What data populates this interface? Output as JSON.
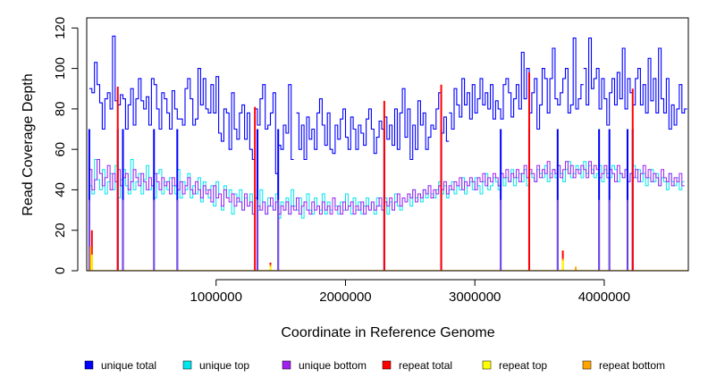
{
  "chart_data": {
    "type": "line",
    "title": "",
    "xlabel": "Coordinate in Reference Genome",
    "ylabel": "Read Coverage Depth",
    "xlim": [
      0,
      4650000
    ],
    "ylim": [
      0,
      125
    ],
    "x_ticks": [
      1000000,
      2000000,
      3000000,
      4000000
    ],
    "x_tick_labels": [
      "1000000",
      "2000000",
      "3000000",
      "4000000"
    ],
    "y_ticks": [
      0,
      20,
      40,
      60,
      80,
      100,
      120
    ],
    "y_tick_labels": [
      "0",
      "20",
      "40",
      "60",
      "80",
      "100",
      "120"
    ],
    "grid": false,
    "legend_position": "bottom",
    "x_start": 20000,
    "x_step": 20000,
    "series": [
      {
        "name": "unique total",
        "color": "#0000ff",
        "segments": [
          {
            "x_start": 20000,
            "x_step": 20000,
            "values": [
              90,
              88,
              103,
              92,
              83,
              70,
              85,
              88,
              80,
              116,
              84,
              82,
              87,
              85,
              70,
              82,
              90,
              72,
              85,
              95,
              84,
              80,
              86,
              72,
              95,
              92,
              80,
              70,
              88,
              85,
              78,
              70,
              89,
              80,
              75,
              75,
              72,
              90,
              95,
              85,
              72,
              75,
              100,
              82,
              95,
              80,
              78,
              92,
              78,
              96,
              68,
              64,
              80,
              78,
              60,
              88,
              70,
              65,
              78,
              82,
              65,
              78,
              60,
              55,
              80,
              72,
              85,
              92,
              70,
              72,
              78,
              88,
              48,
              62,
              60,
              72,
              68,
              92,
              55
            ]
          },
          {
            "x_start": 1620000,
            "x_step": 20000,
            "values": [
              78,
              60,
              72,
              55,
              76,
              65,
              70,
              60,
              78,
              85,
              72,
              62,
              78,
              60,
              58,
              72,
              65,
              75,
              80,
              66,
              60,
              76,
              70,
              60,
              72,
              68,
              62,
              75,
              80,
              70,
              58,
              66,
              74,
              70,
              76,
              65,
              72,
              62,
              80,
              60,
              78,
              90,
              66,
              80,
              55,
              72,
              60,
              84,
              72,
              78,
              60,
              66,
              72,
              70,
              80,
              88,
              68,
              76,
              64
            ]
          },
          {
            "x_start": 2800000,
            "x_step": 20000,
            "values": [
              78,
              70,
              90,
              82,
              76,
              95,
              82,
              88,
              75,
              92,
              78,
              85,
              95,
              82,
              88,
              80,
              92,
              75,
              84,
              80,
              75,
              92,
              95,
              88,
              76,
              85,
              92,
              80,
              108,
              85,
              100,
              78,
              88,
              95,
              70,
              82,
              100,
              95,
              78,
              95,
              110,
              85,
              82,
              88,
              95,
              100,
              78,
              82,
              115,
              80,
              85,
              92
            ]
          },
          {
            "x_start": 3840000,
            "x_step": 20000,
            "values": [
              100,
              82,
              115,
              90,
              95,
              100,
              80,
              95,
              85,
              72,
              88,
              95,
              82,
              98,
              85,
              110,
              80,
              95,
              88,
              82,
              95,
              100,
              82,
              92,
              78,
              105,
              84,
              95,
              78,
              110,
              85,
              78,
              95,
              70,
              82,
              72,
              80,
              92,
              78,
              80
            ]
          }
        ]
      },
      {
        "name": "unique top",
        "color": "#00e5ee",
        "x_start": 20000,
        "x_step": 20000,
        "values": [
          42,
          38,
          55,
          45,
          40,
          50,
          38,
          44,
          48,
          40,
          52,
          36,
          45,
          50,
          42,
          38,
          55,
          40,
          44,
          48,
          38,
          45,
          52,
          40,
          42,
          36,
          48,
          50,
          38,
          44,
          40,
          46,
          42,
          38,
          50,
          36,
          44,
          40,
          48,
          36,
          42,
          38,
          46,
          34,
          44,
          40,
          36,
          42,
          32,
          44,
          38,
          30,
          42,
          36,
          40,
          28,
          38,
          34,
          40,
          30,
          36,
          32,
          38,
          28,
          36,
          30,
          40,
          34,
          28,
          36,
          32,
          30,
          38,
          26,
          34,
          30,
          36,
          28,
          40,
          32,
          30,
          36,
          26,
          34,
          38,
          30,
          28,
          36,
          32,
          30,
          38,
          28,
          34,
          30,
          36,
          32,
          28,
          34,
          30,
          38,
          32,
          28,
          36,
          30,
          34,
          28,
          32,
          36,
          30,
          34,
          28,
          36,
          32,
          30,
          36,
          28,
          34,
          30,
          38,
          32,
          30,
          36,
          34,
          38,
          32,
          40,
          36,
          38,
          34,
          40,
          36,
          42,
          38,
          36,
          40,
          44,
          38,
          42,
          36,
          40,
          44,
          38,
          42,
          40,
          46,
          38,
          42,
          44,
          40,
          46,
          42,
          38,
          44,
          48,
          40,
          42,
          46,
          44,
          40,
          48,
          42,
          46,
          44,
          50,
          42,
          46,
          48,
          44,
          50,
          42,
          48,
          46,
          44,
          50,
          48,
          46,
          52,
          44,
          48,
          50,
          46,
          52,
          48,
          44,
          50,
          54,
          46,
          48,
          52,
          50,
          46,
          54,
          48,
          52,
          50,
          46,
          48,
          52,
          44,
          50,
          48,
          46,
          52,
          50,
          44,
          48,
          46,
          50,
          44,
          48,
          52,
          46,
          50,
          44,
          48,
          42,
          46,
          50,
          44,
          48,
          42,
          46,
          44,
          40,
          48,
          44,
          42,
          46,
          40,
          44
        ]
      },
      {
        "name": "unique bottom",
        "color": "#a020f0",
        "x_start": 20000,
        "x_step": 20000,
        "values": [
          50,
          40,
          45,
          55,
          48,
          42,
          46,
          52,
          40,
          48,
          44,
          50,
          42,
          46,
          48,
          40,
          44,
          50,
          46,
          42,
          48,
          44,
          40,
          46,
          42,
          48,
          44,
          40,
          46,
          42,
          44,
          38,
          46,
          42,
          40,
          44,
          38,
          42,
          46,
          40,
          38,
          44,
          40,
          36,
          42,
          38,
          40,
          34,
          42,
          36,
          38,
          32,
          40,
          36,
          34,
          38,
          32,
          36,
          34,
          30,
          38,
          32,
          34,
          28,
          36,
          32,
          30,
          34,
          28,
          32,
          36,
          30,
          34,
          28,
          32,
          30,
          34,
          28,
          32,
          30,
          36,
          28,
          32,
          34,
          30,
          28,
          34,
          30,
          32,
          28,
          34,
          30,
          32,
          28,
          36,
          30,
          32,
          28,
          34,
          30,
          32,
          34,
          28,
          32,
          30,
          34,
          28,
          32,
          30,
          34,
          30,
          32,
          36,
          30,
          34,
          32,
          36,
          30,
          34,
          38,
          32,
          36,
          34,
          38,
          36,
          40,
          34,
          38,
          36,
          40,
          38,
          42,
          36,
          40,
          38,
          42,
          40,
          44,
          38,
          42,
          40,
          44,
          42,
          46,
          40,
          44,
          42,
          46,
          44,
          40,
          46,
          44,
          48,
          42,
          46,
          44,
          48,
          46,
          42,
          48,
          46,
          50,
          44,
          48,
          46,
          50,
          44,
          48,
          52,
          46,
          50,
          48,
          44,
          52,
          46,
          50,
          48,
          54,
          46,
          50,
          48,
          52,
          46,
          50,
          54,
          48,
          52,
          46,
          50,
          48,
          52,
          50,
          46,
          54,
          48,
          52,
          50,
          46,
          48,
          52,
          46,
          50,
          48,
          44,
          52,
          48,
          46,
          50,
          44,
          48,
          46,
          50,
          44,
          48,
          52,
          46,
          50,
          44,
          48,
          46,
          42,
          50,
          46,
          44,
          48,
          42,
          46,
          44,
          48,
          42
        ]
      },
      {
        "name": "repeat total",
        "color": "#ff0000",
        "spikes": [
          [
            40000,
            20
          ],
          [
            240000,
            91
          ],
          [
            1300000,
            81
          ],
          [
            1420000,
            4
          ],
          [
            2300000,
            84
          ],
          [
            2740000,
            92
          ],
          [
            3420000,
            98
          ],
          [
            3680000,
            10
          ],
          [
            4220000,
            90
          ]
        ]
      },
      {
        "name": "repeat top",
        "color": "#ffff00",
        "spikes": [
          [
            40000,
            8
          ],
          [
            1420000,
            2
          ],
          [
            3680000,
            5
          ]
        ]
      },
      {
        "name": "repeat bottom",
        "color": "#ffa500",
        "spikes": [
          [
            30000,
            12
          ],
          [
            1420000,
            3
          ],
          [
            3680000,
            6
          ],
          [
            3780000,
            2
          ]
        ]
      }
    ],
    "zero_dropouts": [
      20000,
      240000,
      280000,
      520000,
      700000,
      1320000,
      1480000,
      2300000,
      2740000,
      3200000,
      3420000,
      3640000,
      3960000,
      4040000,
      4180000,
      4220000
    ]
  }
}
